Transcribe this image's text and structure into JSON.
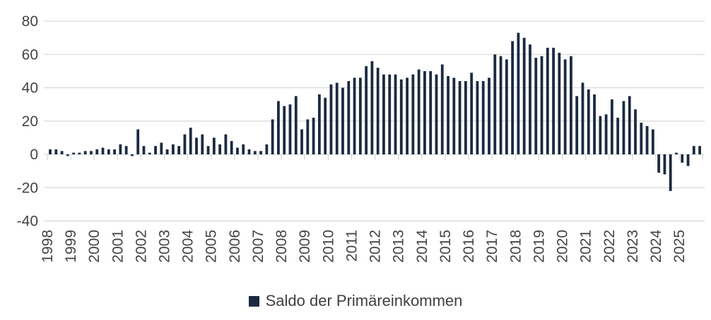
{
  "chart_data": {
    "type": "bar",
    "title": "",
    "legend_label": "Saldo der Primäreinkommen",
    "legend_position": "bottom",
    "bar_color": "#1b2a41",
    "gridline_color": "#d9d9d9",
    "axis_text_color": "#444444",
    "grid": true,
    "ylim": [
      -40,
      80
    ],
    "yticks": [
      80,
      60,
      40,
      20,
      0,
      -20,
      -40
    ],
    "categories": [
      "1998",
      "1999",
      "2000",
      "2001",
      "2002",
      "2003",
      "2004",
      "2005",
      "2006",
      "2007",
      "2008",
      "2009",
      "2010",
      "2011",
      "2012",
      "2013",
      "2014",
      "2015",
      "2016",
      "2017",
      "2018",
      "2019",
      "2020",
      "2021",
      "2022",
      "2023",
      "2024",
      "2025"
    ],
    "bars_per_year": 4,
    "series": [
      {
        "name": "Saldo der Primäreinkommen",
        "values": [
          3,
          3,
          2,
          -1,
          1,
          1,
          2,
          2,
          3,
          4,
          3,
          3,
          6,
          5,
          -1,
          15,
          5,
          1,
          5,
          7,
          3,
          6,
          5,
          12,
          16,
          10,
          12,
          5,
          10,
          6,
          12,
          8,
          4,
          6,
          3,
          2,
          2,
          6,
          21,
          32,
          29,
          30,
          35,
          15,
          21,
          22,
          36,
          34,
          42,
          43,
          40,
          44,
          46,
          46,
          53,
          56,
          52,
          48,
          48,
          48,
          45,
          46,
          48,
          51,
          50,
          50,
          48,
          54,
          47,
          46,
          44,
          44,
          49,
          44,
          44,
          46,
          60,
          59,
          57,
          68,
          73,
          70,
          66,
          58,
          59,
          64,
          64,
          61,
          57,
          59,
          35,
          43,
          39,
          36,
          23,
          24,
          33,
          22,
          32,
          35,
          27,
          19,
          17,
          15,
          -11,
          -12,
          -22,
          1,
          -5,
          -7,
          5,
          5
        ]
      }
    ]
  }
}
